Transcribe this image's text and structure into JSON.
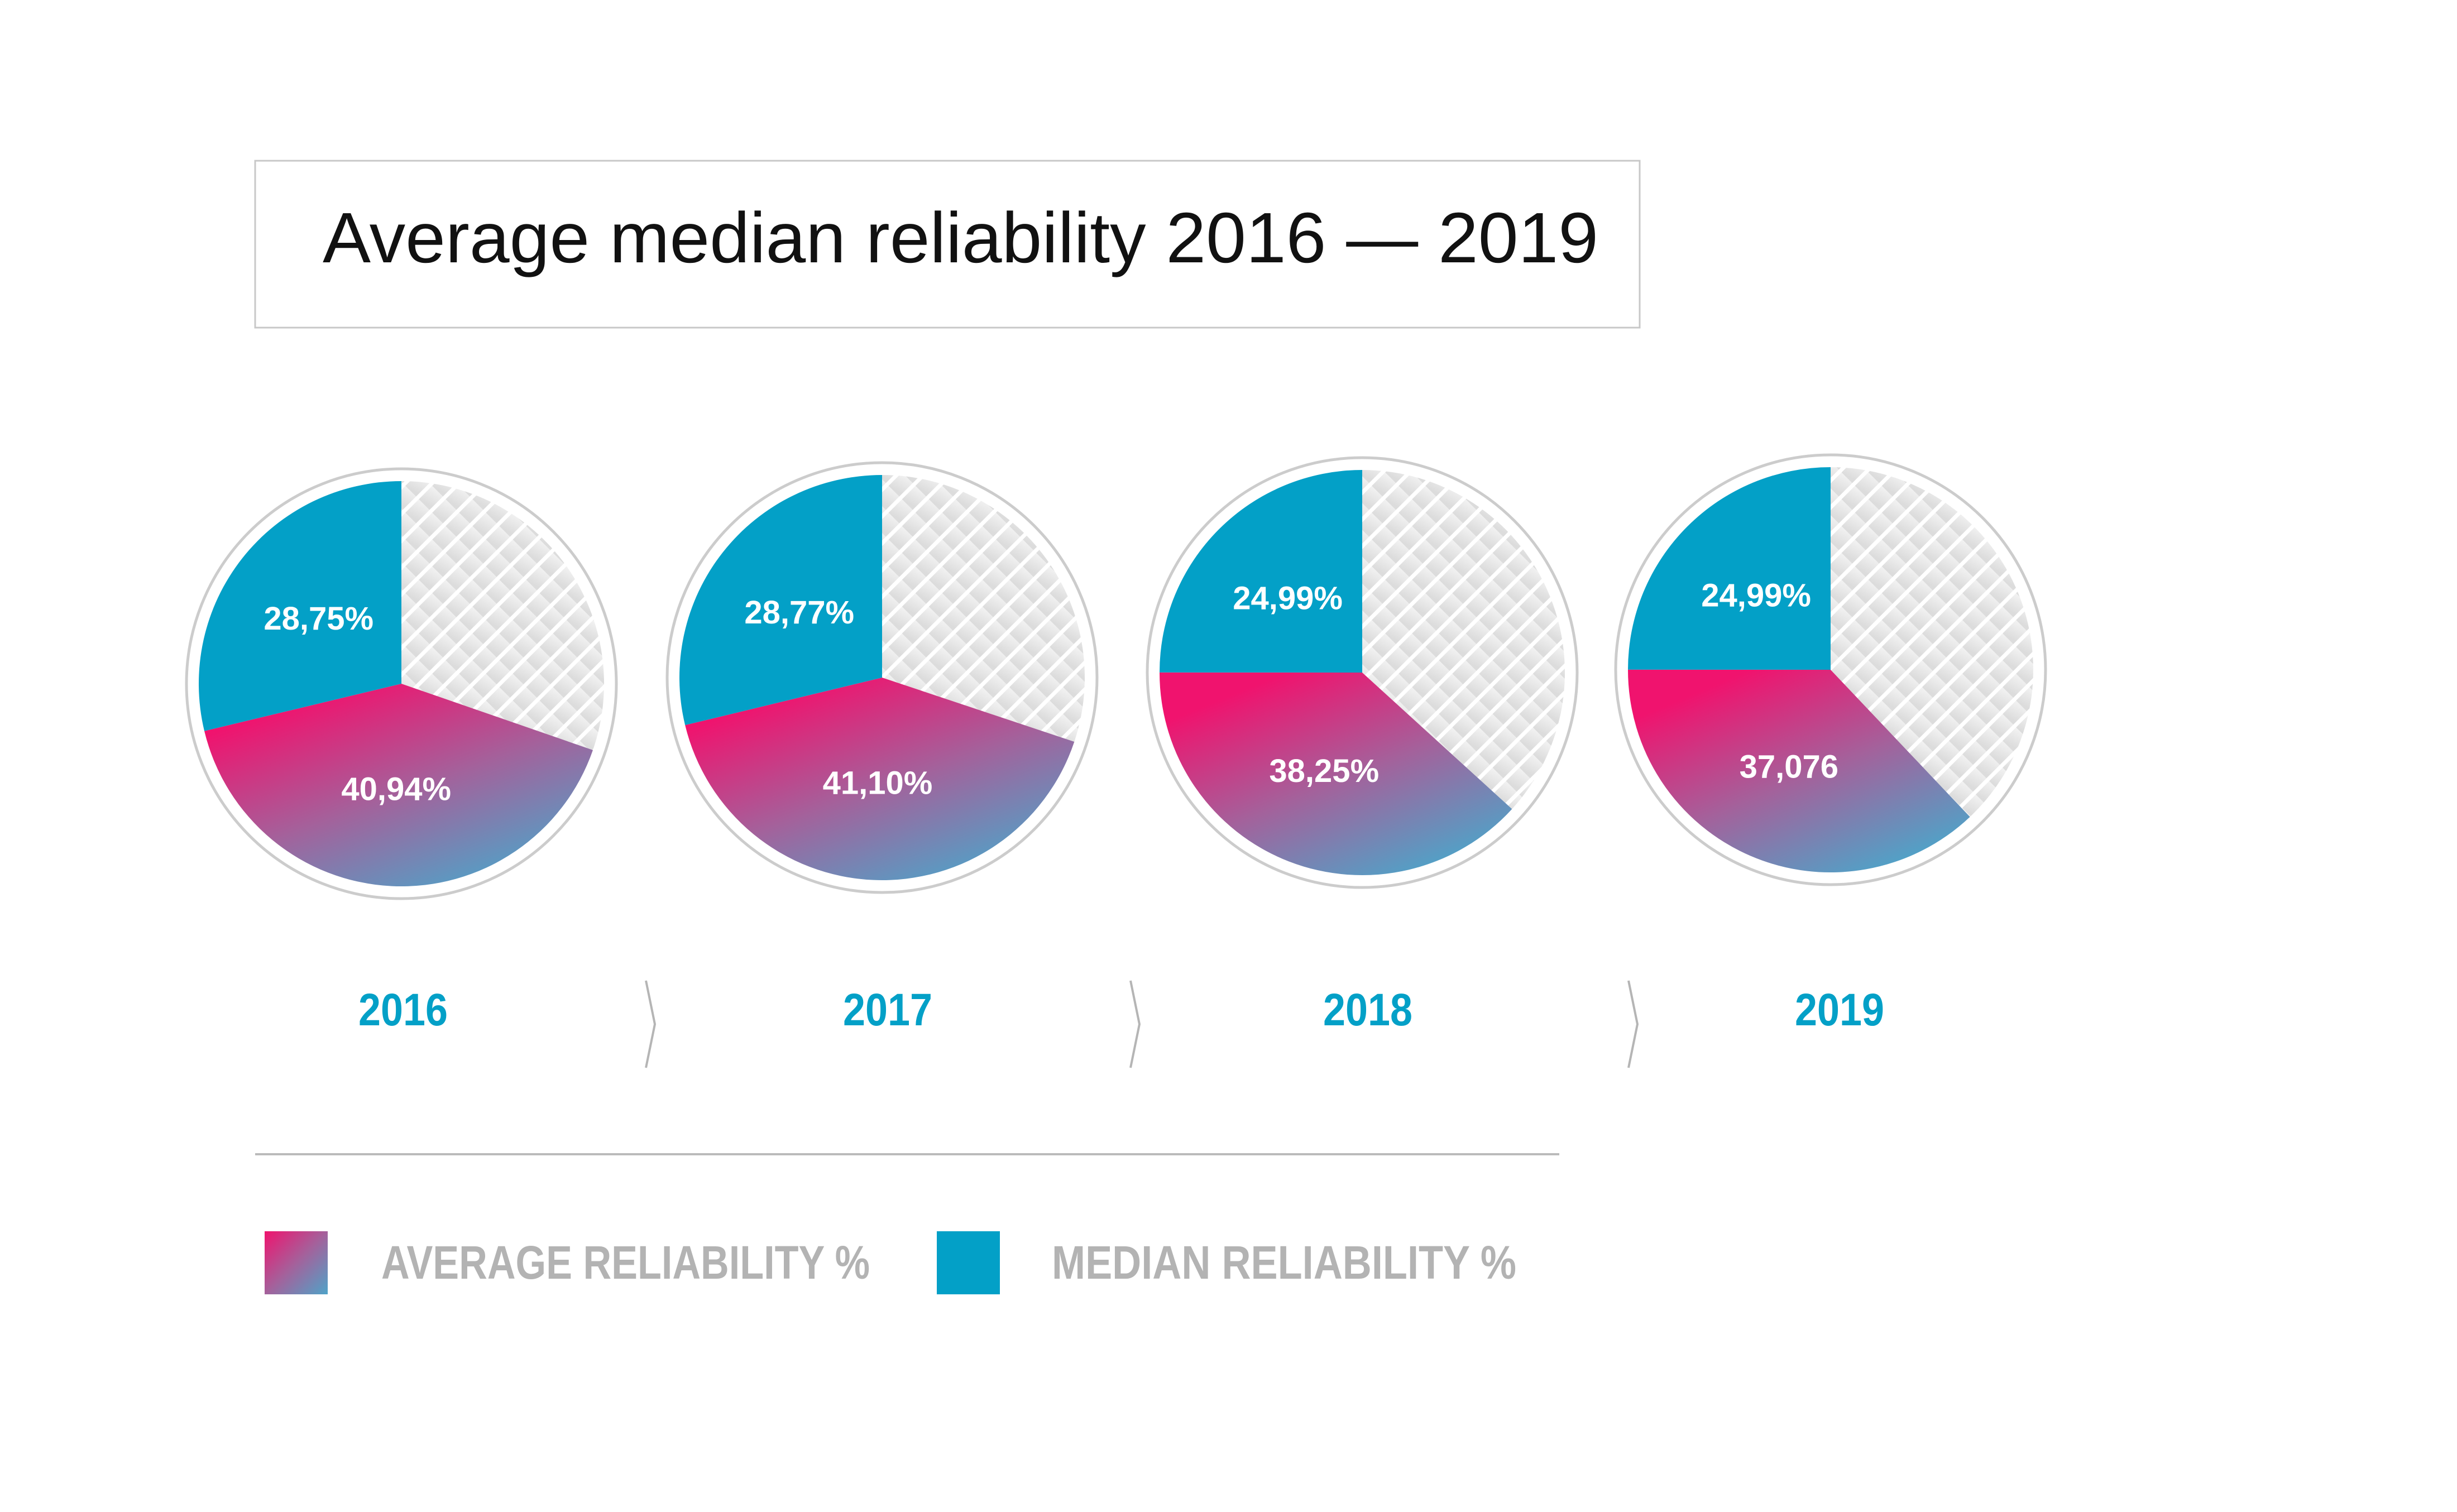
{
  "chart_data": {
    "type": "pie",
    "title": "Average median reliability 2016 — 2019",
    "colors": {
      "median": "#03a0c7",
      "average_start": "#f0136e",
      "average_end": "#4fa3c8",
      "remainder": "#e4e4e4",
      "year_label": "#03a0c7",
      "legend_text": "#b3b3b3",
      "ring": "#cccccc"
    },
    "pies": [
      {
        "year": "2016",
        "median": 28.75,
        "average": 40.94,
        "median_label": "28,75%",
        "average_label": "40,94%"
      },
      {
        "year": "2017",
        "median": 28.77,
        "average": 41.1,
        "median_label": "28,77%",
        "average_label": "41,10%"
      },
      {
        "year": "2018",
        "median": 24.99,
        "average": 38.25,
        "median_label": "24,99%",
        "average_label": "38,25%"
      },
      {
        "year": "2019",
        "median": 24.99,
        "average": 37.076,
        "median_label": "24,99%",
        "average_label": "37,076"
      }
    ],
    "legend": [
      {
        "key": "average",
        "label": "AVERAGE RELIABILITY %"
      },
      {
        "key": "median",
        "label": "MEDIAN RELIABILITY %"
      }
    ],
    "legend_placement": "bottom",
    "separator_icon": "chevron-right-icon"
  }
}
